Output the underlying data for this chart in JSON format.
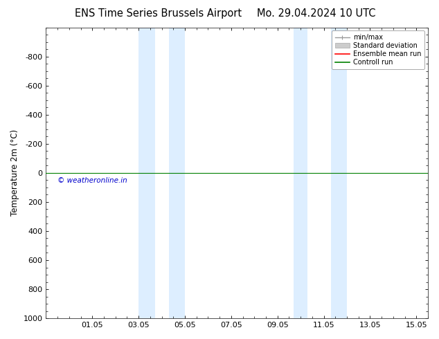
{
  "title_left": "ENS Time Series Brussels Airport",
  "title_right": "Mo. 29.04.2024 10 UTC",
  "ylabel": "Temperature 2m (°C)",
  "ylim_top": -1000,
  "ylim_bottom": 1000,
  "yticks": [
    -800,
    -600,
    -400,
    -200,
    0,
    200,
    400,
    600,
    800,
    1000
  ],
  "xlim_start": 0.0,
  "xlim_end": 16.5,
  "xtick_positions": [
    2.0,
    4.0,
    6.0,
    8.0,
    10.0,
    12.0,
    14.0,
    16.0
  ],
  "xtick_labels": [
    "01.05",
    "03.05",
    "05.05",
    "07.05",
    "09.05",
    "11.05",
    "13.05",
    "15.05"
  ],
  "blue_bands": [
    [
      4.0,
      4.7
    ],
    [
      5.3,
      6.0
    ],
    [
      10.7,
      11.3
    ],
    [
      12.3,
      13.0
    ]
  ],
  "blue_band_color": "#ddeeff",
  "green_line_y": 0,
  "green_line_color": "#008000",
  "red_line_color": "#ff0000",
  "copyright_text": "© weatheronline.in",
  "copyright_color": "#0000cc",
  "legend_labels": [
    "min/max",
    "Standard deviation",
    "Ensemble mean run",
    "Controll run"
  ],
  "bg_color": "#ffffff",
  "title_fontsize": 10.5,
  "axis_fontsize": 8.5,
  "tick_fontsize": 8
}
